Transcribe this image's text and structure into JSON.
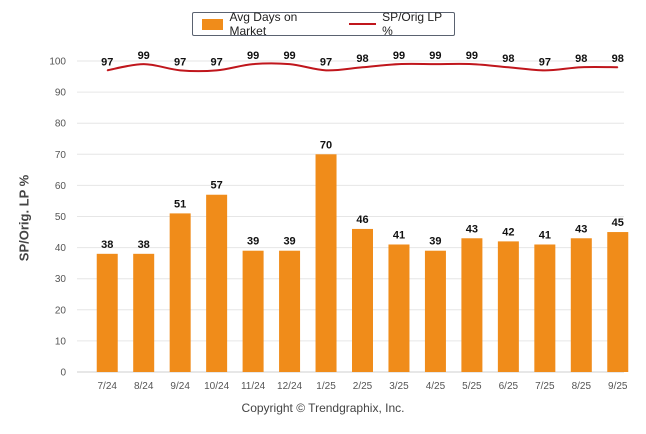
{
  "legend": {
    "bar_label": "Avg Days on Market",
    "line_label": "SP/Orig LP %"
  },
  "y_axis_title": "SP/Orig. LP %",
  "footer": "Copyright © Trendgraphix, Inc.",
  "colors": {
    "bar": "#f08c1a",
    "line": "#c0161c",
    "grid": "#e6e6e6",
    "axis": "#cfcfcf"
  },
  "chart_data": {
    "type": "bar",
    "categories": [
      "7/24",
      "8/24",
      "9/24",
      "10/24",
      "11/24",
      "12/24",
      "1/25",
      "2/25",
      "3/25",
      "4/25",
      "5/25",
      "6/25",
      "7/25",
      "8/25",
      "9/25"
    ],
    "series": [
      {
        "name": "Avg Days on Market",
        "type": "bar",
        "values": [
          38,
          38,
          51,
          57,
          39,
          39,
          70,
          46,
          41,
          39,
          43,
          42,
          41,
          43,
          45
        ]
      },
      {
        "name": "SP/Orig LP %",
        "type": "line",
        "values": [
          97,
          99,
          97,
          97,
          99,
          99,
          97,
          98,
          99,
          99,
          99,
          98,
          97,
          98,
          98
        ]
      }
    ],
    "ylabel": "SP/Orig. LP %",
    "ylim": [
      0,
      100
    ],
    "yticks": [
      0,
      10,
      20,
      30,
      40,
      50,
      60,
      70,
      80,
      90,
      100
    ],
    "grid": true,
    "legend_position": "top-center"
  }
}
